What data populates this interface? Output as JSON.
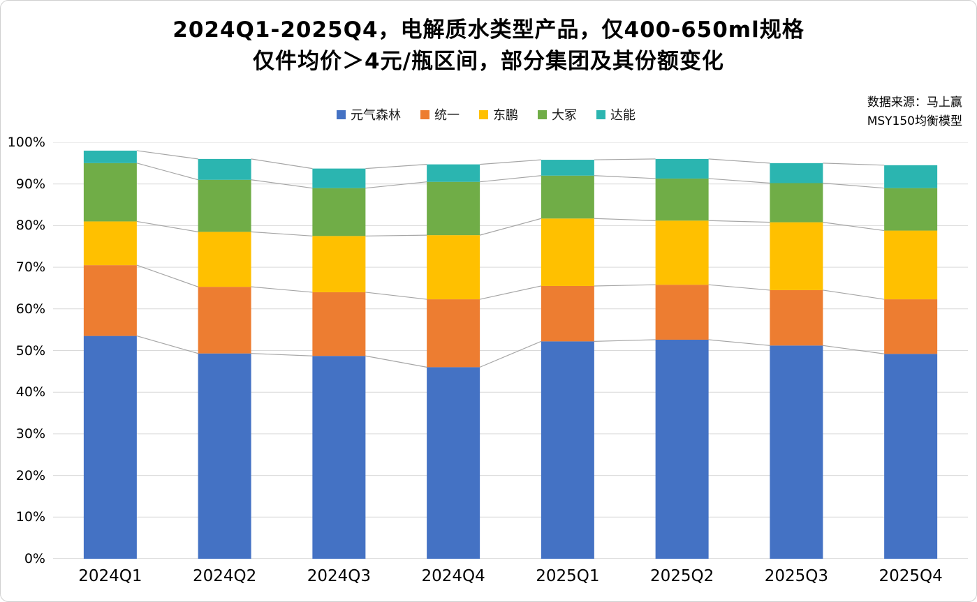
{
  "chart_data": {
    "type": "bar",
    "stacked": true,
    "title_line1": "2024Q1-2025Q4，电解质水类型产品，仅400-650ml规格",
    "title_line2": "仅件均价＞4元/瓶区间，部分集团及其份额变化",
    "source_line1": "数据来源：马上赢",
    "source_line2": "MSY150均衡模型",
    "categories": [
      "2024Q1",
      "2024Q2",
      "2024Q3",
      "2024Q4",
      "2025Q1",
      "2025Q2",
      "2025Q3",
      "2025Q4"
    ],
    "series": [
      {
        "name": "元气森林",
        "color": "#4472C4",
        "values": [
          53.5,
          49.3,
          48.7,
          46.0,
          52.2,
          52.6,
          51.2,
          49.2
        ]
      },
      {
        "name": "统一",
        "color": "#ED7D31",
        "values": [
          17.0,
          16.0,
          15.3,
          16.3,
          13.3,
          13.2,
          13.3,
          13.1
        ]
      },
      {
        "name": "东鹏",
        "color": "#FFC000",
        "values": [
          10.5,
          13.2,
          13.5,
          15.4,
          16.2,
          15.4,
          16.3,
          16.5
        ]
      },
      {
        "name": "大冢",
        "color": "#70AD47",
        "values": [
          14.0,
          12.5,
          11.5,
          12.8,
          10.3,
          10.1,
          9.4,
          10.2
        ]
      },
      {
        "name": "达能",
        "color": "#2BB5B0",
        "values": [
          3.0,
          5.0,
          4.7,
          4.2,
          3.8,
          4.7,
          4.8,
          5.5
        ]
      }
    ],
    "ylim": [
      0,
      100
    ],
    "ytick_step": 10,
    "ytick_labels": [
      "0%",
      "10%",
      "20%",
      "30%",
      "40%",
      "50%",
      "60%",
      "70%",
      "80%",
      "90%",
      "100%"
    ],
    "grid": true,
    "legend_position": "top-center",
    "connector_lines": true,
    "gridline_color": "#D9D9D9",
    "axis_color": "#BFBFBF",
    "connector_color": "#A6A6A6"
  }
}
